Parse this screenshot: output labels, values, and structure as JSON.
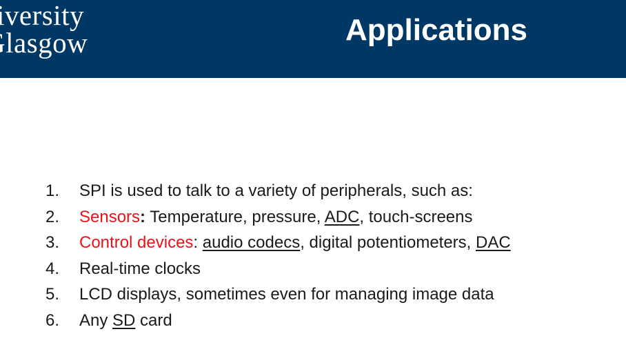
{
  "header": {
    "logo_line1": "niversity",
    "logo_line2": "Glasgow",
    "title": "Applications"
  },
  "colors": {
    "header_bg": "#003865",
    "accent_red": "#e8141b",
    "text": "#1a1a1a"
  },
  "items": [
    {
      "num": "1.",
      "parts": [
        "SPI is used to talk to a variety of peripherals, such as:"
      ]
    },
    {
      "num": "2.",
      "parts": [
        "Sensors",
        ":",
        " Temperature, pressure, ",
        "ADC",
        ", touch-screens"
      ]
    },
    {
      "num": "3.",
      "parts": [
        "Control devices",
        ": ",
        "audio codecs",
        ", digital potentiometers, ",
        "DAC"
      ]
    },
    {
      "num": "4.",
      "parts": [
        "Real-time clocks"
      ]
    },
    {
      "num": "5.",
      "parts": [
        "LCD displays, sometimes even for managing image data"
      ]
    },
    {
      "num": "6.",
      "parts": [
        "Any ",
        "SD",
        " card"
      ]
    }
  ]
}
